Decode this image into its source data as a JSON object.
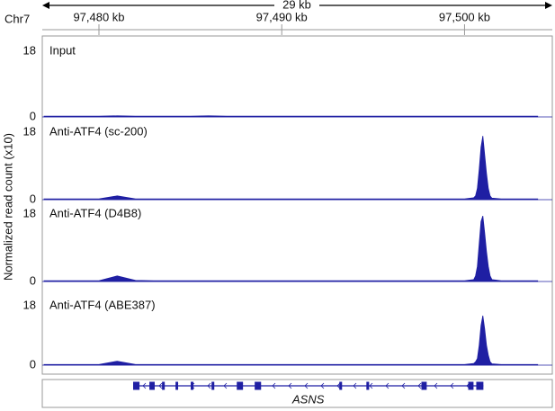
{
  "chart_data": {
    "type": "area",
    "ruler_label": "29 kb",
    "chromosome": "Chr7",
    "ylabel": "Normalized read count (x10)",
    "xlim": [
      97476.9,
      97504.8
    ],
    "xticks": [
      {
        "value": 97480,
        "label": "97,480 kb"
      },
      {
        "value": 97490,
        "label": "97,490 kb"
      },
      {
        "value": 97500,
        "label": "97,500 kb"
      }
    ],
    "ylim": [
      0,
      18
    ],
    "yticks": [
      0,
      18
    ],
    "x": [
      97477,
      97478,
      97479,
      97480,
      97481,
      97482,
      97483,
      97484,
      97485,
      97486,
      97487,
      97488,
      97489,
      97490,
      97491,
      97492,
      97493,
      97494,
      97495,
      97496,
      97497,
      97498,
      97499,
      97500,
      97500.5,
      97500.6,
      97500.7,
      97500.8,
      97500.9,
      97501.0,
      97501.1,
      97501.2,
      97501.3,
      97501.4,
      97501.5,
      97502,
      97503,
      97504
    ],
    "series": [
      {
        "name": "Input",
        "color": "#1f1fa3",
        "values": [
          0.2,
          0.2,
          0.2,
          0.2,
          0.3,
          0.2,
          0.2,
          0.2,
          0.2,
          0.3,
          0.2,
          0.2,
          0.2,
          0.2,
          0.2,
          0.2,
          0.2,
          0.2,
          0.2,
          0.2,
          0.2,
          0.2,
          0.2,
          0.2,
          0.2,
          0.2,
          0.2,
          0.2,
          0.2,
          0.2,
          0.2,
          0.2,
          0.2,
          0.2,
          0.2,
          0.2,
          0.2,
          0.2
        ]
      },
      {
        "name": "Anti-ATF4 (sc-200)",
        "color": "#1f1fa3",
        "values": [
          0.2,
          0.2,
          0.2,
          0.2,
          1.0,
          0.2,
          0.2,
          0.2,
          0.2,
          0.2,
          0.2,
          0.2,
          0.2,
          0.2,
          0.2,
          0.2,
          0.2,
          0.2,
          0.2,
          0.2,
          0.2,
          0.2,
          0.2,
          0.2,
          0.5,
          1,
          3,
          8,
          14,
          17,
          12,
          7,
          3,
          1,
          0.4,
          0.2,
          0.2,
          0.2
        ]
      },
      {
        "name": "Anti-ATF4 (D4B8)",
        "color": "#1f1fa3",
        "values": [
          0.2,
          0.2,
          0.2,
          0.2,
          1.5,
          0.3,
          0.2,
          0.2,
          0.2,
          0.2,
          0.2,
          0.2,
          0.2,
          0.2,
          0.2,
          0.2,
          0.2,
          0.2,
          0.2,
          0.2,
          0.2,
          0.2,
          0.2,
          0.2,
          0.5,
          1.5,
          4,
          10,
          16,
          17.5,
          13,
          8,
          4,
          1.5,
          0.5,
          0.2,
          0.2,
          0.2
        ]
      },
      {
        "name": "Anti-ATF4 (ABE387)",
        "color": "#1f1fa3",
        "values": [
          0.2,
          0.2,
          0.2,
          0.2,
          1.2,
          0.2,
          0.2,
          0.2,
          0.2,
          0.2,
          0.2,
          0.2,
          0.2,
          0.2,
          0.2,
          0.2,
          0.2,
          0.2,
          0.2,
          0.2,
          0.2,
          0.2,
          0.2,
          0.2,
          0.5,
          1,
          2,
          6,
          12,
          15,
          11,
          6,
          3,
          1,
          0.4,
          0.2,
          0.2,
          0.2
        ]
      }
    ],
    "gene": {
      "name": "ASNS",
      "color": "#1f1fa3",
      "start": 97481.87,
      "end": 97501.03,
      "exons": [
        {
          "start": 97481.87,
          "end": 97482.22
        },
        {
          "start": 97482.76,
          "end": 97483.05
        },
        {
          "start": 97483.45,
          "end": 97483.6
        },
        {
          "start": 97484.19,
          "end": 97484.33
        },
        {
          "start": 97485.02,
          "end": 97485.17
        },
        {
          "start": 97486.16,
          "end": 97486.31
        },
        {
          "start": 97487.54,
          "end": 97487.88
        },
        {
          "start": 97488.52,
          "end": 97488.87
        },
        {
          "start": 97493.15,
          "end": 97493.3
        },
        {
          "start": 97494.63,
          "end": 97494.78
        },
        {
          "start": 97497.64,
          "end": 97497.93
        },
        {
          "start": 97500.2,
          "end": 97500.49
        },
        {
          "start": 97500.64,
          "end": 97501.03
        }
      ]
    }
  }
}
